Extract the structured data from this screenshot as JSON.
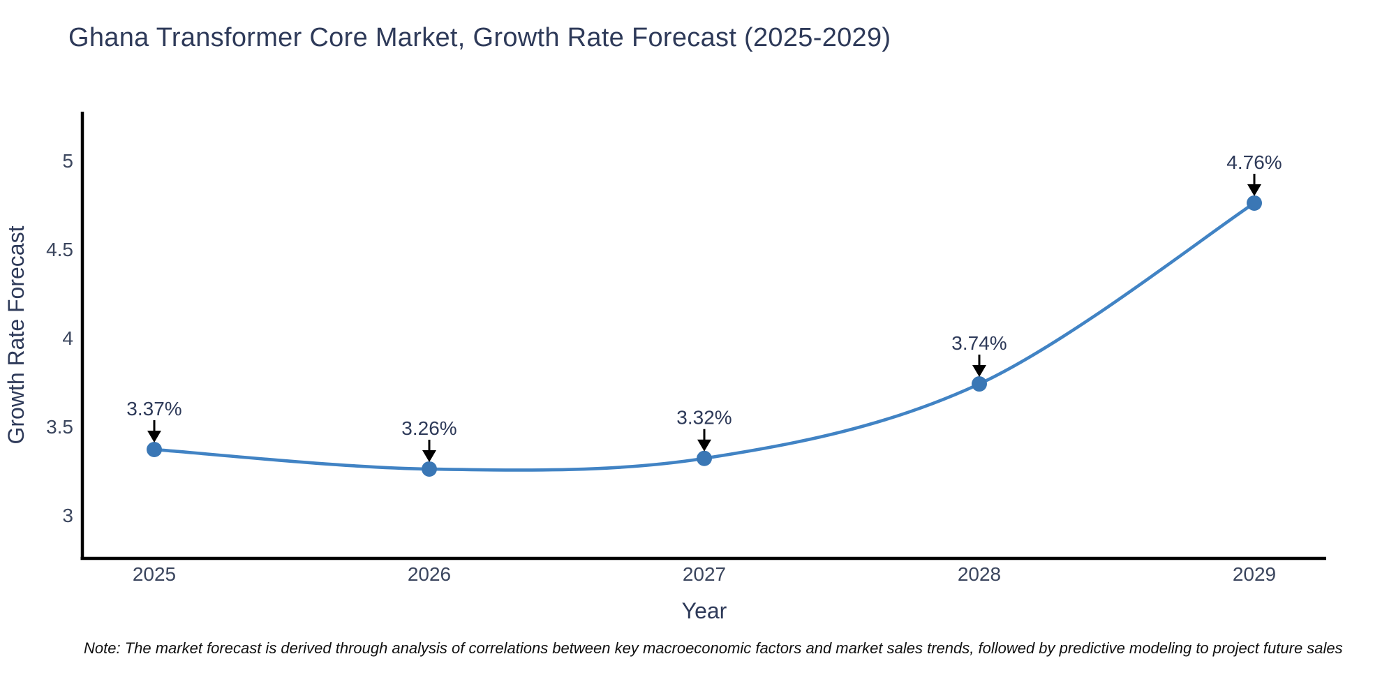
{
  "chart": {
    "title": "Ghana Transformer Core Market, Growth Rate Forecast (2025-2029)",
    "note": "Note: The market forecast is derived through analysis of correlations between key macroeconomic factors and market sales trends, followed by predictive modeling to project future sales"
  },
  "chart_data": {
    "type": "line",
    "title": "Ghana Transformer Core Market, Growth Rate Forecast (2025-2029)",
    "x": [
      2025,
      2026,
      2027,
      2028,
      2029
    ],
    "series": [
      {
        "name": "Growth Rate Forecast",
        "values": [
          3.37,
          3.26,
          3.32,
          3.74,
          4.76
        ]
      }
    ],
    "point_labels": [
      "3.37%",
      "3.26%",
      "3.32%",
      "3.74%",
      "4.76%"
    ],
    "xlabel": "Year",
    "ylabel": "Growth Rate Forecast",
    "yticks": [
      3,
      3.5,
      4,
      4.5,
      5
    ],
    "ylim": [
      2.76,
      5.28
    ],
    "line_shape": "spline",
    "grid": false,
    "legend": "none",
    "annotations_style": "value label with downward black arrow to each point",
    "colors": {
      "line": "#4183c4",
      "marker": "#3a77b5",
      "arrow": "#000000",
      "axis": "#000000",
      "text": "#2e3a59",
      "tick_text": "#3b465e",
      "note_text": "#111111",
      "background": "#ffffff"
    }
  }
}
